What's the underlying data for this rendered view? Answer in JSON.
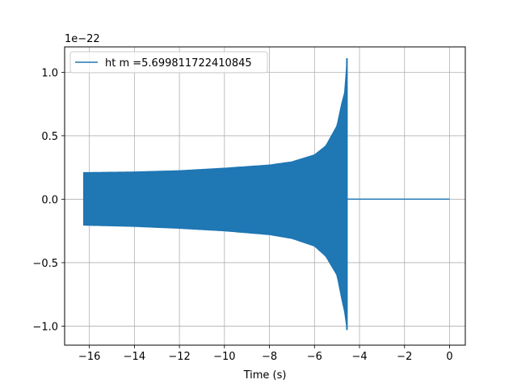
{
  "chart_data": {
    "type": "line",
    "title": "",
    "xlabel": "Time (s)",
    "ylabel": "",
    "offset_text": "1e−22",
    "y_scale_multiplier": 1e-22,
    "xlim": [
      -17.1,
      0.7
    ],
    "ylim": [
      -1.15,
      1.2
    ],
    "xticks": [
      -16,
      -14,
      -12,
      -10,
      -8,
      -6,
      -4,
      -2,
      0
    ],
    "xtick_labels": [
      "−16",
      "−14",
      "−12",
      "−10",
      "−8",
      "−6",
      "−4",
      "−2",
      "0"
    ],
    "yticks": [
      -1.0,
      -0.5,
      0.0,
      0.5,
      1.0
    ],
    "ytick_labels": [
      "−1.0",
      "−0.5",
      "0.0",
      "0.5",
      "1.0"
    ],
    "grid": true,
    "legend_position": "top-left",
    "series": [
      {
        "name": "ht m =5.699811722410845",
        "color": "#1f77b4",
        "signal": "chirp",
        "t_start": -16.25,
        "t_merger": -4.55,
        "t_end": 0.0,
        "upper_envelope": [
          [
            -16.25,
            0.21
          ],
          [
            -14,
            0.215
          ],
          [
            -12,
            0.225
          ],
          [
            -10,
            0.245
          ],
          [
            -8,
            0.27
          ],
          [
            -7,
            0.295
          ],
          [
            -6,
            0.35
          ],
          [
            -5.5,
            0.42
          ],
          [
            -5,
            0.58
          ],
          [
            -4.8,
            0.75
          ],
          [
            -4.65,
            0.85
          ],
          [
            -4.56,
            1.11
          ]
        ],
        "lower_envelope": [
          [
            -16.25,
            -0.205
          ],
          [
            -14,
            -0.215
          ],
          [
            -12,
            -0.23
          ],
          [
            -10,
            -0.25
          ],
          [
            -8,
            -0.28
          ],
          [
            -7,
            -0.31
          ],
          [
            -6,
            -0.37
          ],
          [
            -5.5,
            -0.45
          ],
          [
            -5,
            -0.6
          ],
          [
            -4.8,
            -0.78
          ],
          [
            -4.65,
            -0.9
          ],
          [
            -4.56,
            -1.03
          ]
        ],
        "post_merger_value": 0.0
      }
    ]
  }
}
